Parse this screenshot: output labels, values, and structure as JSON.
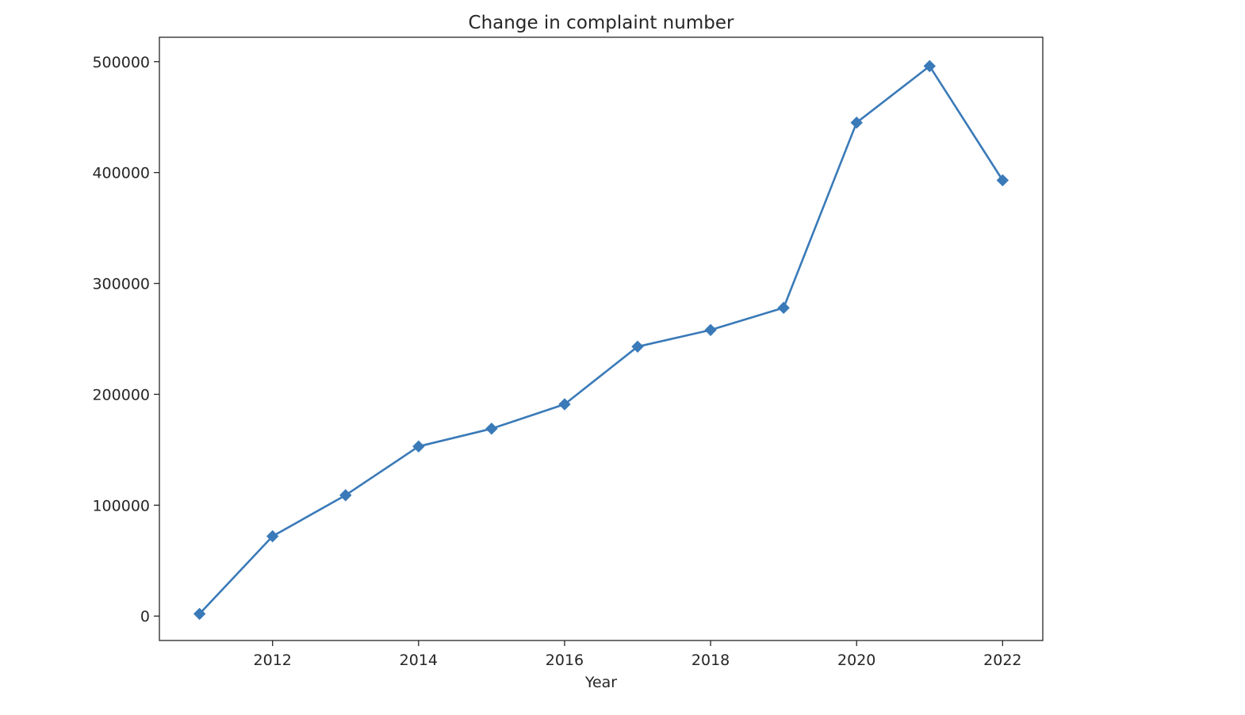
{
  "chart_data": {
    "type": "line",
    "title": "Change in complaint number",
    "xlabel": "Year",
    "ylabel": "",
    "x": [
      2011,
      2012,
      2013,
      2014,
      2015,
      2016,
      2017,
      2018,
      2019,
      2020,
      2021,
      2022
    ],
    "series": [
      {
        "values": [
          2000,
          72000,
          109000,
          153000,
          169000,
          191000,
          243000,
          258000,
          278000,
          445000,
          496000,
          393000
        ],
        "color": "#3a7ab8",
        "marker": "diamond"
      }
    ],
    "xlim": [
      2010.45,
      2022.55
    ],
    "ylim": [
      -22000,
      522000
    ],
    "xticks": [
      2012,
      2014,
      2016,
      2018,
      2020,
      2022
    ],
    "xtick_labels": [
      "2012",
      "2014",
      "2016",
      "2018",
      "2020",
      "2022"
    ],
    "yticks": [
      0,
      100000,
      200000,
      300000,
      400000,
      500000
    ],
    "ytick_labels": [
      "0",
      "100000",
      "200000",
      "300000",
      "400000",
      "500000"
    ],
    "grid": false,
    "legend": "none"
  }
}
